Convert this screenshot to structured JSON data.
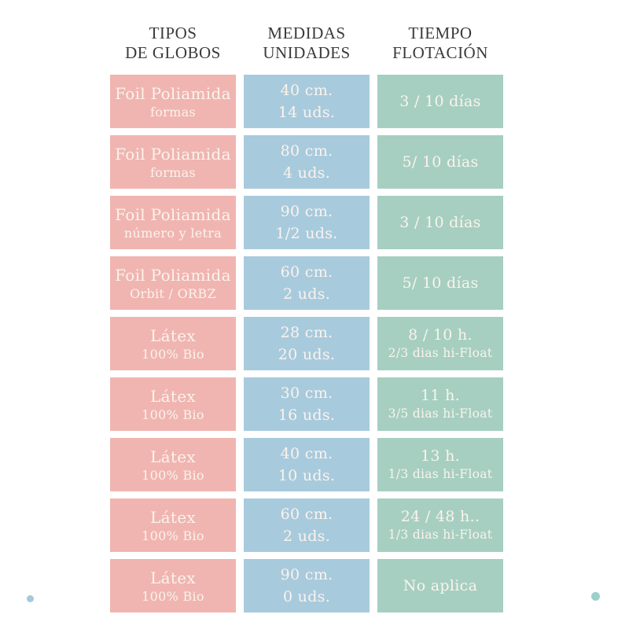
{
  "chart_data": {
    "type": "table",
    "title": "",
    "columns": [
      {
        "line1": "TIPOS",
        "line2": "DE GLOBOS"
      },
      {
        "line1": "MEDIDAS",
        "line2": "UNIDADES"
      },
      {
        "line1": "TIEMPO",
        "line2": "FLOTACIÓN"
      }
    ],
    "rows": [
      {
        "balloon_type": "Foil Poliamida",
        "type_variant": "formas",
        "size": "40 cm.",
        "units": "14 uds.",
        "float_time": "3 / 10 días",
        "float_note": ""
      },
      {
        "balloon_type": "Foil Poliamida",
        "type_variant": "formas",
        "size": "80 cm.",
        "units": "4 uds.",
        "float_time": "5/ 10 días",
        "float_note": ""
      },
      {
        "balloon_type": "Foil Poliamida",
        "type_variant": "número y letra",
        "size": "90 cm.",
        "units": "1/2 uds.",
        "float_time": "3 / 10 días",
        "float_note": ""
      },
      {
        "balloon_type": "Foil Poliamida",
        "type_variant": "Orbit / ORBZ",
        "size": "60 cm.",
        "units": "2 uds.",
        "float_time": "5/ 10 días",
        "float_note": ""
      },
      {
        "balloon_type": "Látex",
        "type_variant": "100% Bio",
        "size": "28 cm.",
        "units": "20 uds.",
        "float_time": "8 / 10 h.",
        "float_note": "2/3 dias hi-Float"
      },
      {
        "balloon_type": "Látex",
        "type_variant": "100% Bio",
        "size": "30 cm.",
        "units": "16 uds.",
        "float_time": "11 h.",
        "float_note": "3/5 dias hi-Float"
      },
      {
        "balloon_type": "Látex",
        "type_variant": "100% Bio",
        "size": "40 cm.",
        "units": "10 uds.",
        "float_time": "13 h.",
        "float_note": "1/3 dias hi-Float"
      },
      {
        "balloon_type": "Látex",
        "type_variant": "100% Bio",
        "size": "60 cm.",
        "units": "2 uds.",
        "float_time": "24 / 48 h..",
        "float_note": "1/3 dias hi-Float"
      },
      {
        "balloon_type": "Látex",
        "type_variant": "100% Bio",
        "size": "90 cm.",
        "units": "0 uds.",
        "float_time": "No aplica",
        "float_note": ""
      }
    ]
  },
  "colors": {
    "type_bg": "#f0b5b1",
    "measure_bg": "#a8cadd",
    "float_bg": "#a6cfc1",
    "cell_text": "#fbf3ec",
    "header_text": "#3a3a3a",
    "page_bg": "#ffffff",
    "dot_left": "#a5c8dc",
    "dot_right": "#9cd0cc"
  }
}
